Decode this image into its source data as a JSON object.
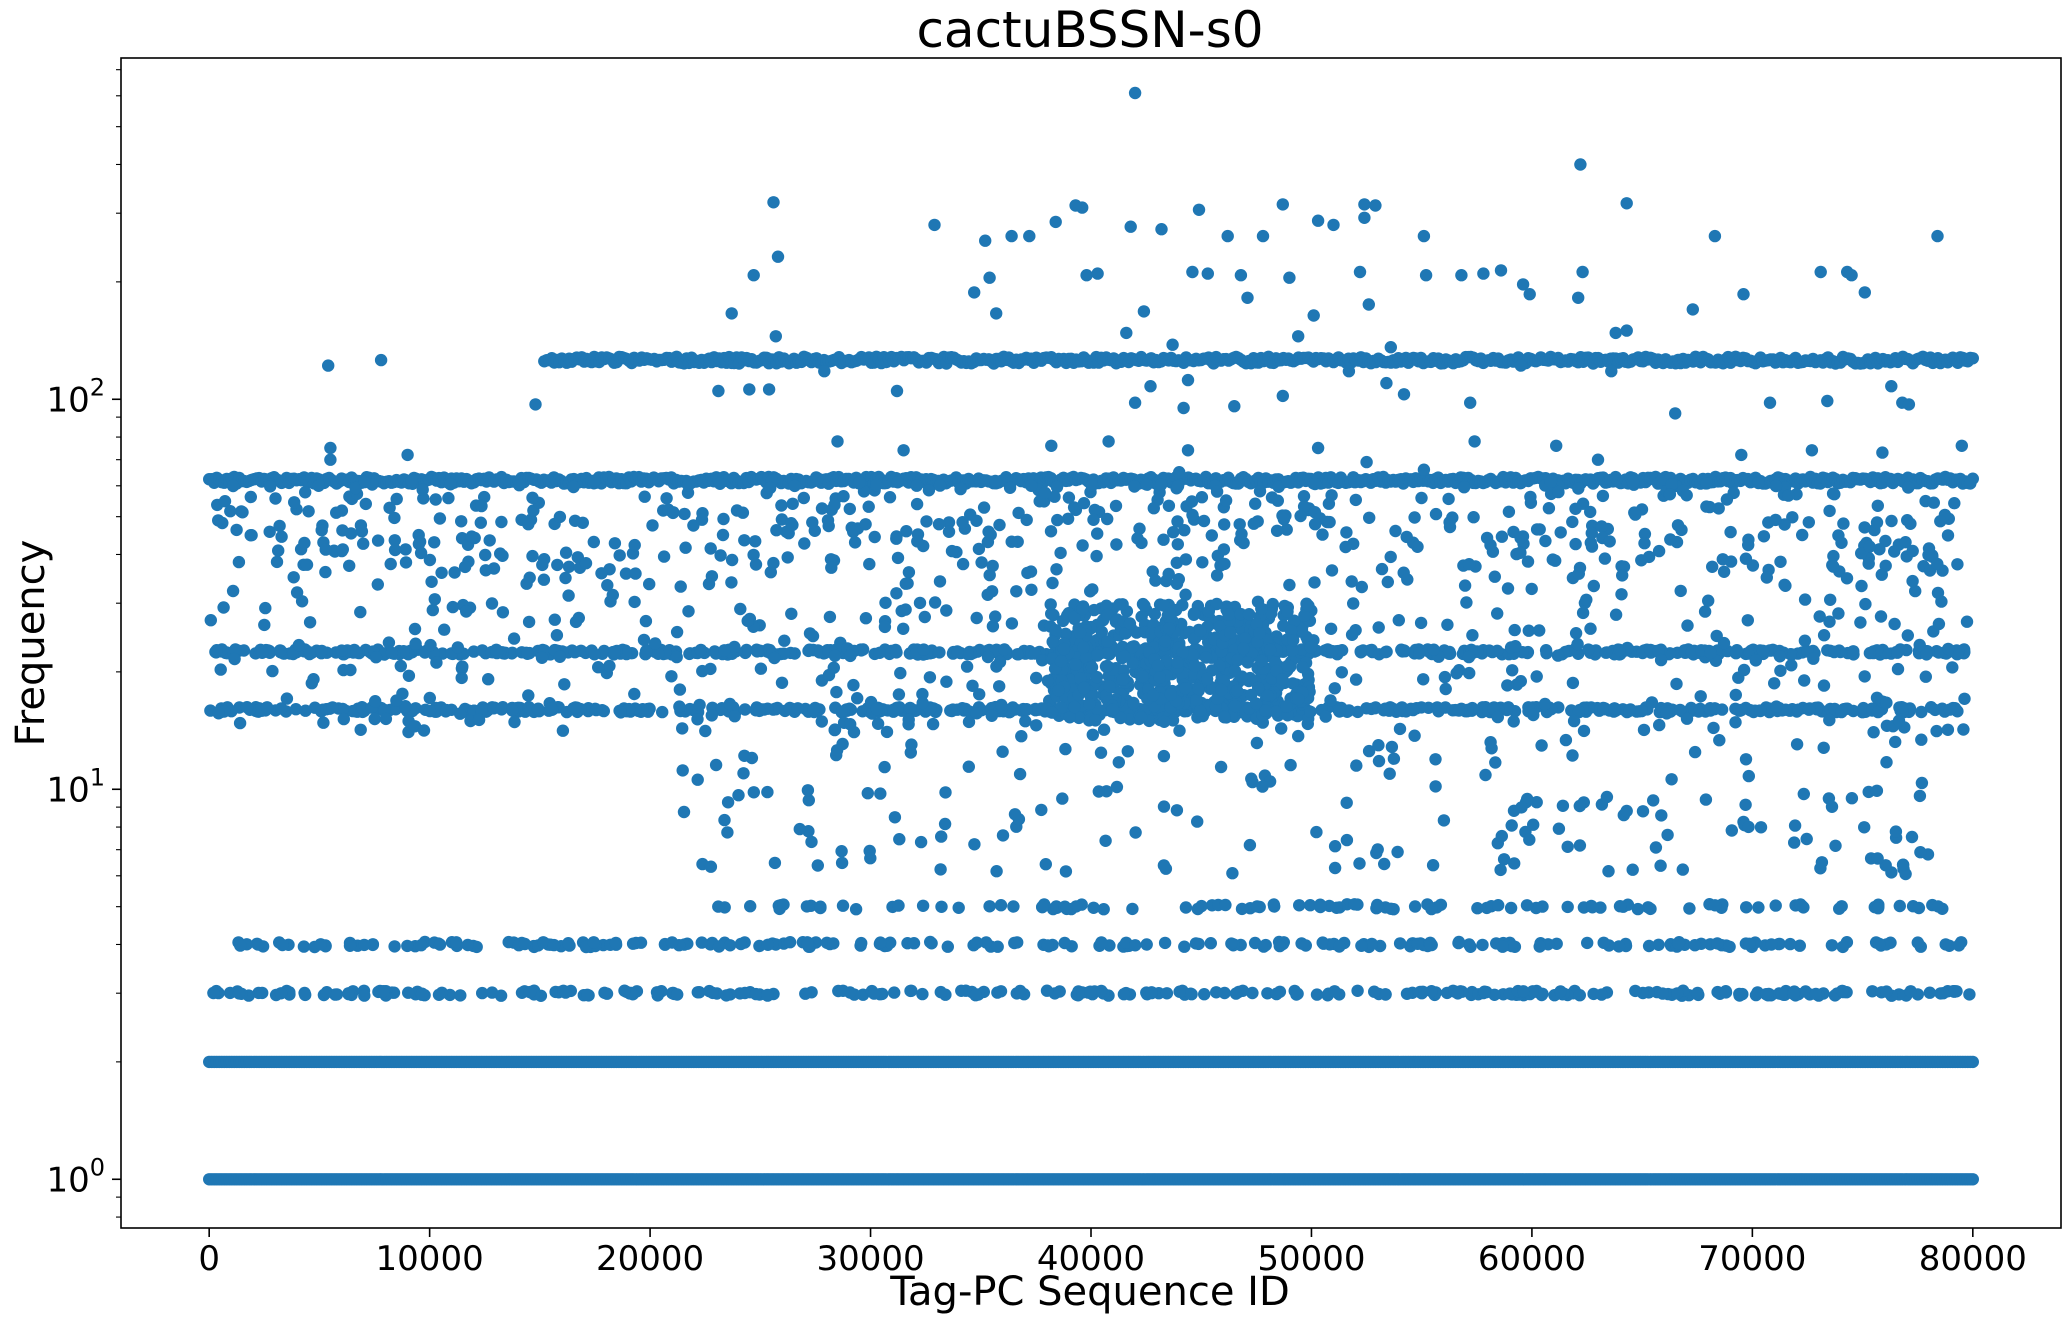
{
  "chart_data": {
    "type": "scatter",
    "title": "cactuBSSN-s0",
    "xlabel": "Tag-PC Sequence ID",
    "ylabel": "Frequency",
    "xlim": [
      -4000,
      84000
    ],
    "ylim": [
      0.75,
      750
    ],
    "yscale": "log",
    "grid": false,
    "legend": "none",
    "color": "#1f77b4",
    "x_ticks": [
      {
        "value": 0,
        "label": "0"
      },
      {
        "value": 10000,
        "label": "10000"
      },
      {
        "value": 20000,
        "label": "20000"
      },
      {
        "value": 30000,
        "label": "30000"
      },
      {
        "value": 40000,
        "label": "40000"
      },
      {
        "value": 50000,
        "label": "50000"
      },
      {
        "value": 60000,
        "label": "60000"
      },
      {
        "value": 70000,
        "label": "70000"
      },
      {
        "value": 80000,
        "label": "80000"
      }
    ],
    "y_ticks": [
      {
        "value": 1,
        "base": "10",
        "exp": "0"
      },
      {
        "value": 10,
        "base": "10",
        "exp": "1"
      },
      {
        "value": 100,
        "base": "10",
        "exp": "2"
      }
    ],
    "bands": [
      {
        "y": 1,
        "x_range": [
          0,
          80000
        ]
      },
      {
        "y": 2,
        "x_range": [
          0,
          80000
        ]
      },
      {
        "y": 62,
        "x_range": [
          0,
          80000
        ]
      },
      {
        "y": 126,
        "x_range": [
          15200,
          80000
        ]
      }
    ],
    "points": [
      [
        42000,
        610
      ],
      [
        62200,
        400
      ],
      [
        25600,
        320
      ],
      [
        64300,
        318
      ],
      [
        48700,
        316
      ],
      [
        52400,
        316
      ],
      [
        52900,
        314
      ],
      [
        39600,
        310
      ],
      [
        39300,
        314
      ],
      [
        44900,
        306
      ],
      [
        32900,
        280
      ],
      [
        50300,
        287
      ],
      [
        51000,
        280
      ],
      [
        41800,
        277
      ],
      [
        38400,
        285
      ],
      [
        43200,
        273
      ],
      [
        68300,
        262
      ],
      [
        78400,
        262
      ],
      [
        35200,
        255
      ],
      [
        36400,
        262
      ],
      [
        37200,
        262
      ],
      [
        46200,
        262
      ],
      [
        47800,
        262
      ],
      [
        55100,
        262
      ],
      [
        52400,
        292
      ],
      [
        25800,
        232
      ],
      [
        24700,
        208
      ],
      [
        35400,
        205
      ],
      [
        39800,
        208
      ],
      [
        40300,
        210
      ],
      [
        44600,
        212
      ],
      [
        45300,
        210
      ],
      [
        46800,
        208
      ],
      [
        49000,
        205
      ],
      [
        52200,
        212
      ],
      [
        55200,
        208
      ],
      [
        56800,
        208
      ],
      [
        57800,
        210
      ],
      [
        58600,
        214
      ],
      [
        62300,
        212
      ],
      [
        73100,
        212
      ],
      [
        74300,
        212
      ],
      [
        74500,
        208
      ],
      [
        59600,
        197
      ],
      [
        34700,
        188
      ],
      [
        47100,
        182
      ],
      [
        59900,
        186
      ],
      [
        62100,
        182
      ],
      [
        69600,
        186
      ],
      [
        75100,
        188
      ],
      [
        23700,
        166
      ],
      [
        35700,
        166
      ],
      [
        42400,
        168
      ],
      [
        50100,
        164
      ],
      [
        52600,
        175
      ],
      [
        67300,
        170
      ],
      [
        41600,
        148
      ],
      [
        43700,
        138
      ],
      [
        49400,
        145
      ],
      [
        53600,
        136
      ],
      [
        63800,
        148
      ],
      [
        64300,
        150
      ],
      [
        25700,
        145
      ],
      [
        5400,
        122
      ],
      [
        7800,
        126
      ],
      [
        27900,
        118
      ],
      [
        42700,
        108
      ],
      [
        44400,
        112
      ],
      [
        51700,
        118
      ],
      [
        53400,
        110
      ],
      [
        59500,
        122
      ],
      [
        63600,
        118
      ],
      [
        76300,
        108
      ],
      [
        14800,
        97
      ],
      [
        31200,
        105
      ],
      [
        23100,
        105
      ],
      [
        24500,
        106
      ],
      [
        25400,
        106
      ],
      [
        42000,
        98
      ],
      [
        44200,
        95
      ],
      [
        46500,
        96
      ],
      [
        48700,
        102
      ],
      [
        54200,
        103
      ],
      [
        57200,
        98
      ],
      [
        66500,
        92
      ],
      [
        70800,
        98
      ],
      [
        73400,
        99
      ],
      [
        76800,
        98
      ],
      [
        77100,
        97
      ],
      [
        9000,
        72
      ],
      [
        5500,
        75
      ],
      [
        5500,
        70
      ],
      [
        38200,
        76
      ],
      [
        40800,
        78
      ],
      [
        44400,
        74
      ],
      [
        50300,
        75
      ],
      [
        57400,
        78
      ],
      [
        61100,
        76
      ],
      [
        69500,
        72
      ],
      [
        72700,
        74
      ],
      [
        75900,
        73
      ],
      [
        79500,
        76
      ],
      [
        31500,
        74
      ],
      [
        44000,
        65
      ],
      [
        52500,
        69
      ],
      [
        55100,
        66
      ],
      [
        63000,
        70
      ],
      [
        28500,
        78
      ]
    ],
    "clusters": [
      {
        "y_range": [
          36,
          62
        ],
        "x_range": [
          0,
          80000
        ],
        "count": 500
      },
      {
        "y_range": [
          14,
          36
        ],
        "x_range": [
          0,
          80000
        ],
        "count": 420
      },
      {
        "y_range": [
          15,
          30
        ],
        "x_range": [
          38000,
          50000
        ],
        "count": 650
      },
      {
        "y_range": [
          6,
          15
        ],
        "x_range": [
          20000,
          78000
        ],
        "count": 200
      }
    ],
    "rows": [
      {
        "y": 22.5,
        "x_range": [
          0,
          80000
        ],
        "count": 520
      },
      {
        "y": 16,
        "x_range": [
          0,
          80000
        ],
        "count": 560
      },
      {
        "y": 5,
        "x_range": [
          22500,
          79000
        ],
        "count": 110
      },
      {
        "y": 4,
        "x_range": [
          1200,
          79500
        ],
        "count": 230
      },
      {
        "y": 3,
        "x_range": [
          0,
          80000
        ],
        "count": 290
      }
    ]
  }
}
